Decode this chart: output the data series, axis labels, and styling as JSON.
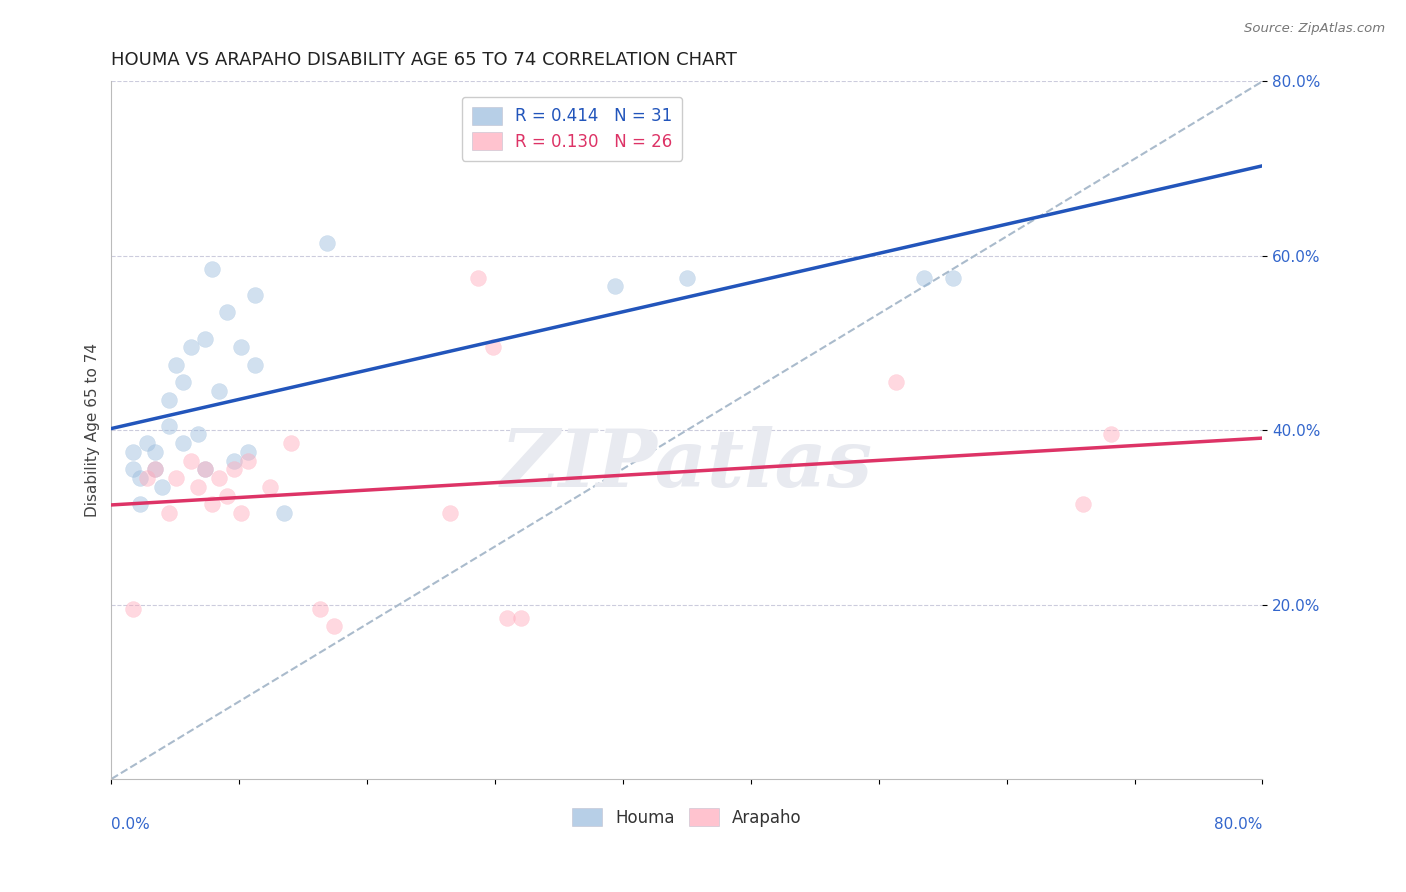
{
  "title": "HOUMA VS ARAPAHO DISABILITY AGE 65 TO 74 CORRELATION CHART",
  "source": "Source: ZipAtlas.com",
  "ylabel": "Disability Age 65 to 74",
  "xlim": [
    0.0,
    0.8
  ],
  "ylim": [
    0.0,
    0.8
  ],
  "houma_color": "#99BBDD",
  "arapaho_color": "#FFAABB",
  "houma_line_color": "#2255BB",
  "arapaho_line_color": "#DD3366",
  "ref_line_color": "#AABBCC",
  "legend_R_houma": "R = 0.414",
  "legend_N_houma": "N = 31",
  "legend_R_arapaho": "R = 0.130",
  "legend_N_arapaho": "N = 26",
  "houma_x": [
    0.015,
    0.015,
    0.02,
    0.02,
    0.025,
    0.03,
    0.03,
    0.035,
    0.04,
    0.04,
    0.045,
    0.05,
    0.05,
    0.055,
    0.06,
    0.065,
    0.065,
    0.07,
    0.075,
    0.08,
    0.085,
    0.09,
    0.095,
    0.1,
    0.1,
    0.12,
    0.15,
    0.35,
    0.4,
    0.565,
    0.585
  ],
  "houma_y": [
    0.375,
    0.355,
    0.345,
    0.315,
    0.385,
    0.375,
    0.355,
    0.335,
    0.435,
    0.405,
    0.475,
    0.455,
    0.385,
    0.495,
    0.395,
    0.505,
    0.355,
    0.585,
    0.445,
    0.535,
    0.365,
    0.495,
    0.375,
    0.555,
    0.475,
    0.305,
    0.615,
    0.565,
    0.575,
    0.575,
    0.575
  ],
  "arapaho_x": [
    0.015,
    0.025,
    0.03,
    0.04,
    0.045,
    0.055,
    0.06,
    0.065,
    0.07,
    0.075,
    0.08,
    0.085,
    0.09,
    0.095,
    0.11,
    0.125,
    0.145,
    0.155,
    0.235,
    0.255,
    0.265,
    0.275,
    0.285,
    0.545,
    0.675,
    0.695
  ],
  "arapaho_y": [
    0.195,
    0.345,
    0.355,
    0.305,
    0.345,
    0.365,
    0.335,
    0.355,
    0.315,
    0.345,
    0.325,
    0.355,
    0.305,
    0.365,
    0.335,
    0.385,
    0.195,
    0.175,
    0.305,
    0.575,
    0.495,
    0.185,
    0.185,
    0.455,
    0.315,
    0.395
  ],
  "watermark": "ZIPatlas",
  "watermark_color": "#E8EAF0",
  "background_color": "#FFFFFF",
  "grid_color": "#CCCCDD",
  "title_fontsize": 13,
  "axis_label_fontsize": 11,
  "tick_fontsize": 11,
  "marker_size": 130,
  "marker_alpha": 0.45,
  "legend_fontsize": 12
}
